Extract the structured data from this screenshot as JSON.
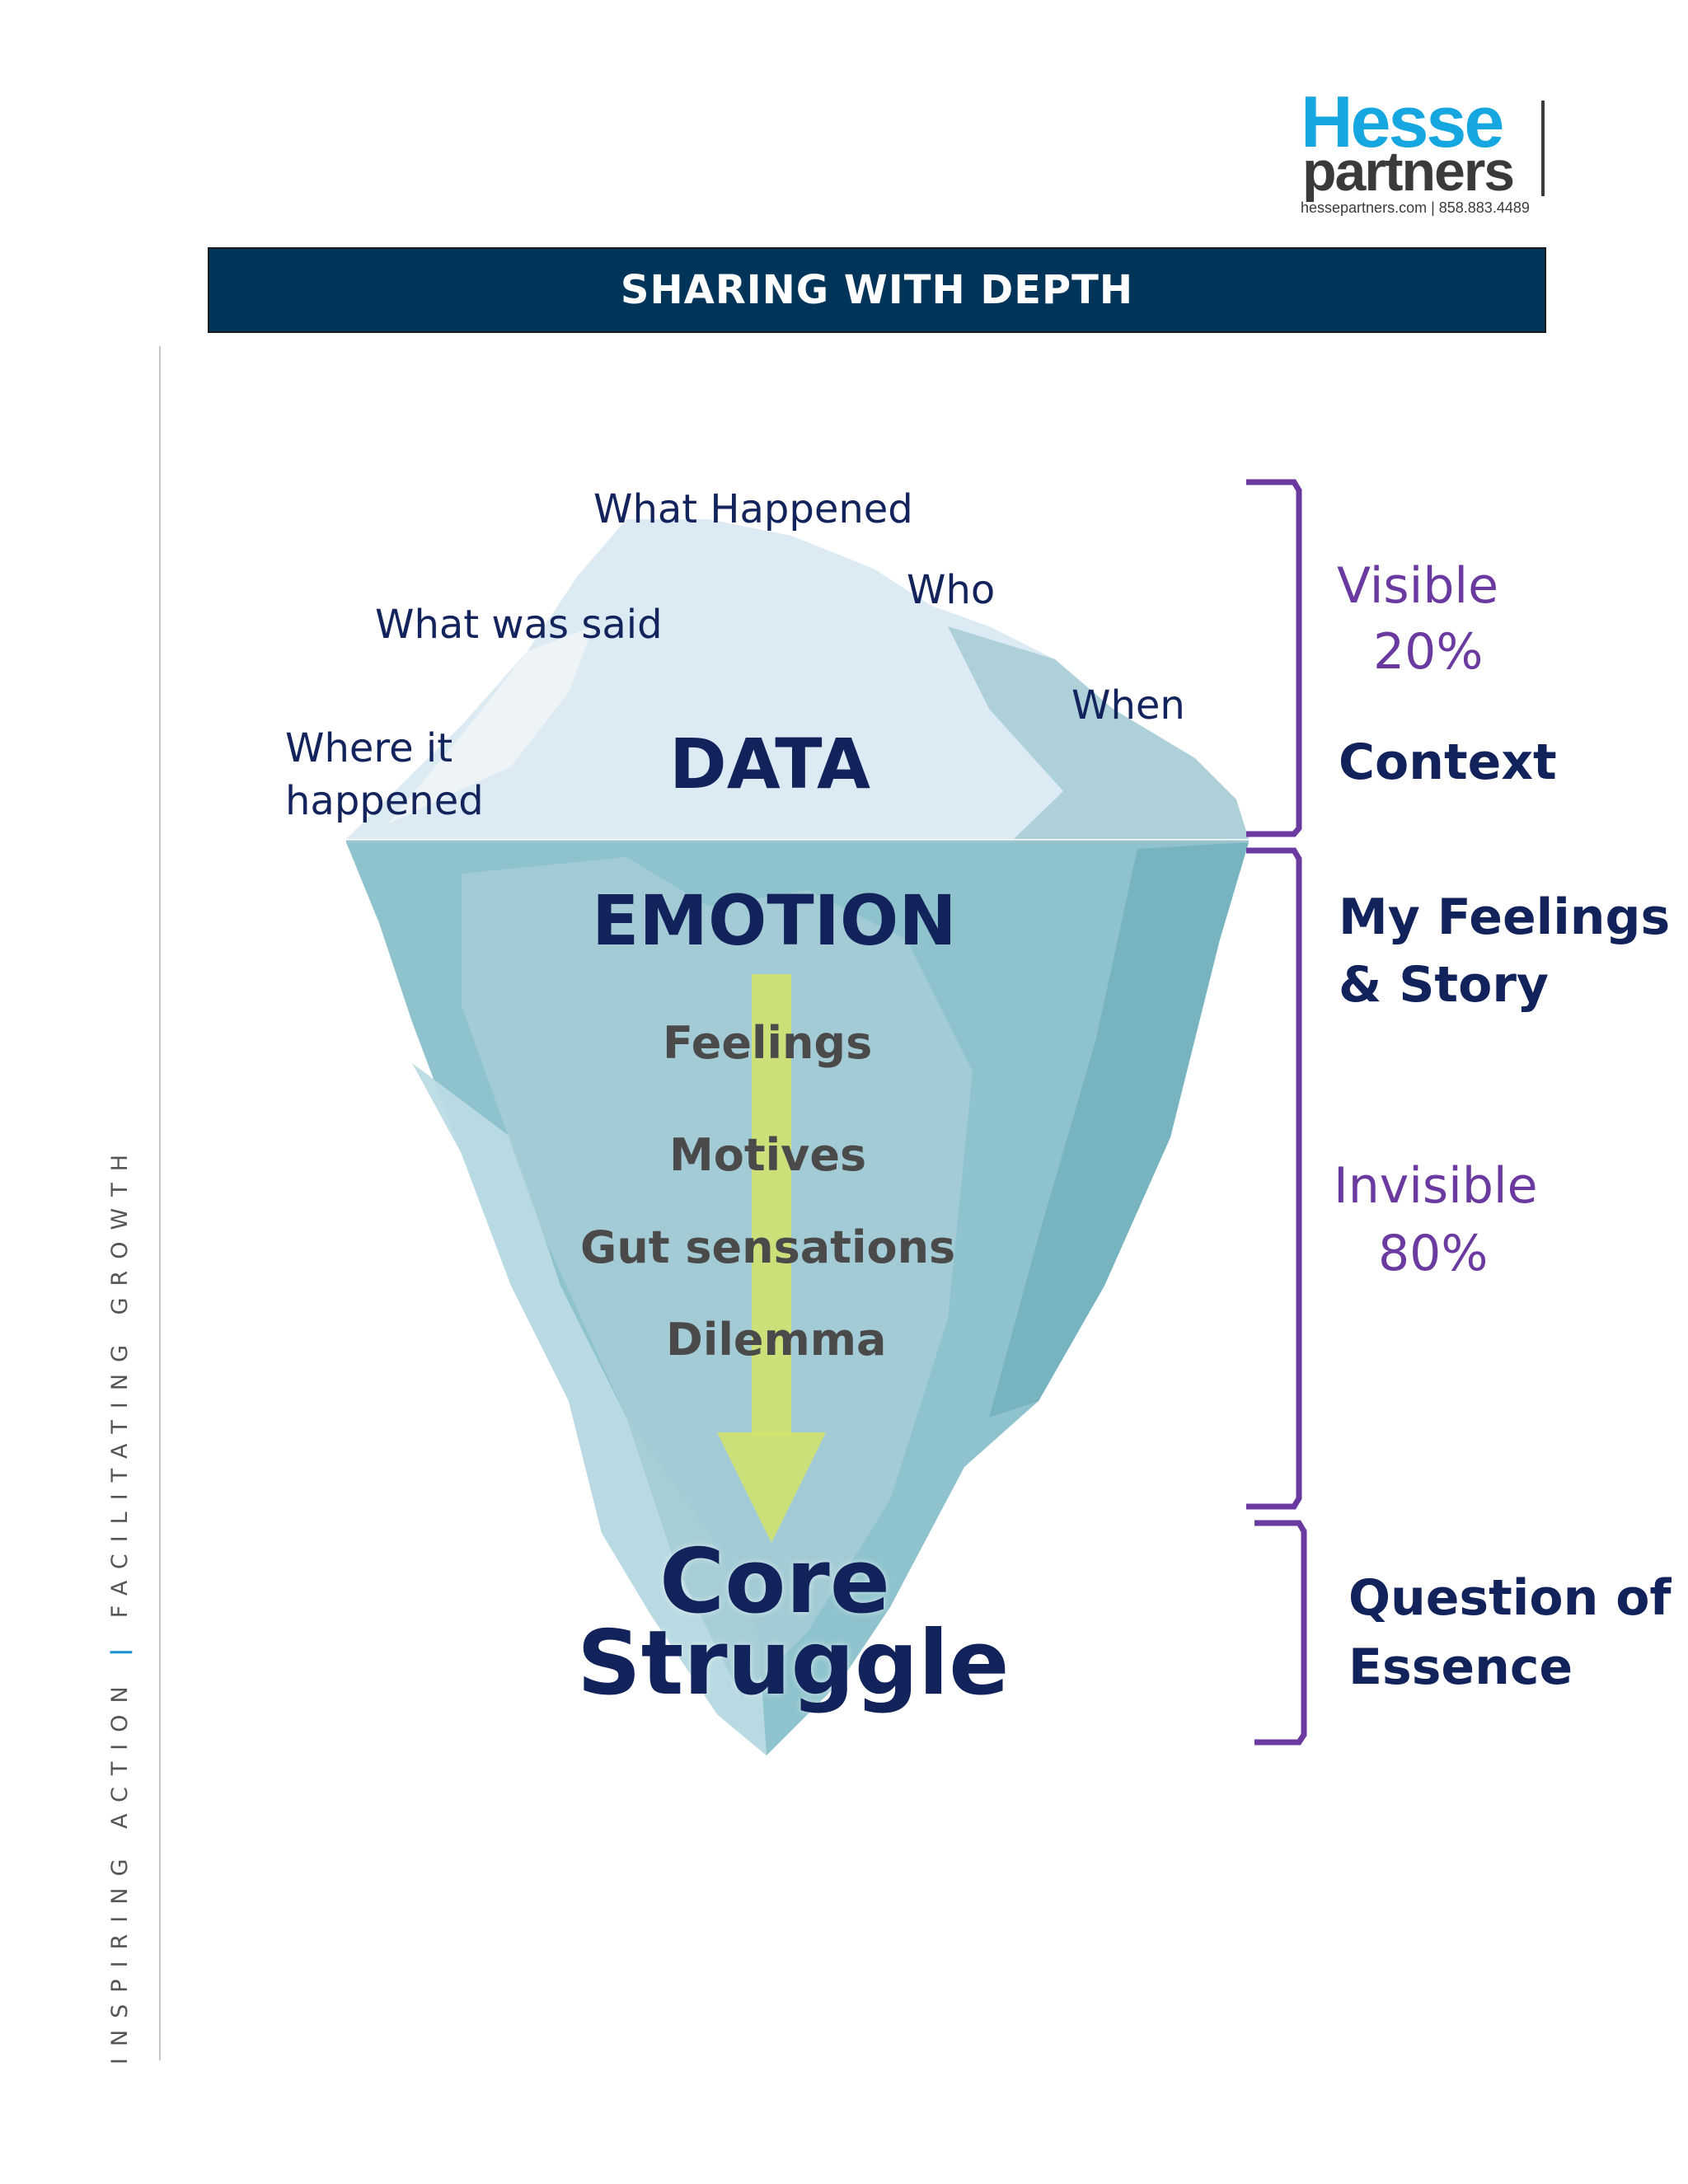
{
  "logo": {
    "brand_top": "Hesse",
    "brand_bottom": "partners",
    "contact": "hessepartners.com | 858.883.4489"
  },
  "header": {
    "title": "SHARING WITH DEPTH"
  },
  "vertical_tagline": {
    "left": "INSPIRING ACTION",
    "separator": "|",
    "right": "FACILITATING GROWTH"
  },
  "iceberg": {
    "surface_labels": [
      "What Happened",
      "Who",
      "What was said",
      "When",
      "Where it",
      "happened"
    ],
    "data_label": "DATA",
    "emotion_label": "EMOTION",
    "depth_labels": [
      "Feelings",
      "Motives",
      "Gut sensations",
      "Dilemma"
    ],
    "core_line1": "Core",
    "core_line2": "Struggle"
  },
  "right_panel": {
    "visible_label": "Visible",
    "visible_pct": "20%",
    "context": "Context",
    "feelings_line1": "My Feelings",
    "feelings_line2": "& Story",
    "invisible_label": "Invisible",
    "invisible_pct": "80%",
    "essence_line1": "Question of",
    "essence_line2": "Essence"
  },
  "colors": {
    "banner": "#003459",
    "navy_text": "#12225a",
    "bracket": "#6a3aa0",
    "arrow": "#d4e46a",
    "ice_above": "#dceaf2",
    "ice_below": "#8ec3cd"
  }
}
